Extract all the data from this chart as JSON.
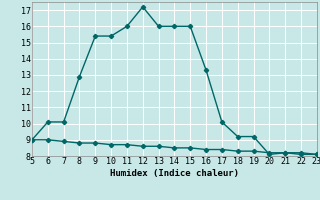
{
  "title": "",
  "xlabel": "Humidex (Indice chaleur)",
  "ylabel": "",
  "background_color": "#c8e8e8",
  "grid_color": "#ffffff",
  "line_color": "#006666",
  "xlim": [
    5,
    23
  ],
  "ylim": [
    8,
    17.5
  ],
  "xticks": [
    5,
    6,
    7,
    8,
    9,
    10,
    11,
    12,
    13,
    14,
    15,
    16,
    17,
    18,
    19,
    20,
    21,
    22,
    23
  ],
  "yticks": [
    8,
    9,
    10,
    11,
    12,
    13,
    14,
    15,
    16,
    17
  ],
  "curve1_x": [
    5,
    6,
    7,
    8,
    9,
    10,
    11,
    12,
    13,
    14,
    15,
    16,
    17,
    18,
    19,
    20,
    21,
    22,
    23
  ],
  "curve1_y": [
    9.0,
    10.1,
    10.1,
    12.9,
    15.4,
    15.4,
    16.0,
    17.2,
    16.0,
    16.0,
    16.0,
    13.3,
    10.1,
    9.2,
    9.2,
    8.1,
    8.2,
    8.2,
    8.1
  ],
  "curve2_x": [
    5,
    6,
    7,
    8,
    9,
    10,
    11,
    12,
    13,
    14,
    15,
    16,
    17,
    18,
    19,
    20,
    21,
    22,
    23
  ],
  "curve2_y": [
    9.0,
    9.0,
    8.9,
    8.8,
    8.8,
    8.7,
    8.7,
    8.6,
    8.6,
    8.5,
    8.5,
    8.4,
    8.4,
    8.3,
    8.3,
    8.2,
    8.2,
    8.1,
    8.1
  ],
  "marker": "D",
  "markersize": 2.2,
  "linewidth": 1.0,
  "fontsize_label": 6.5,
  "fontsize_tick": 6.0
}
